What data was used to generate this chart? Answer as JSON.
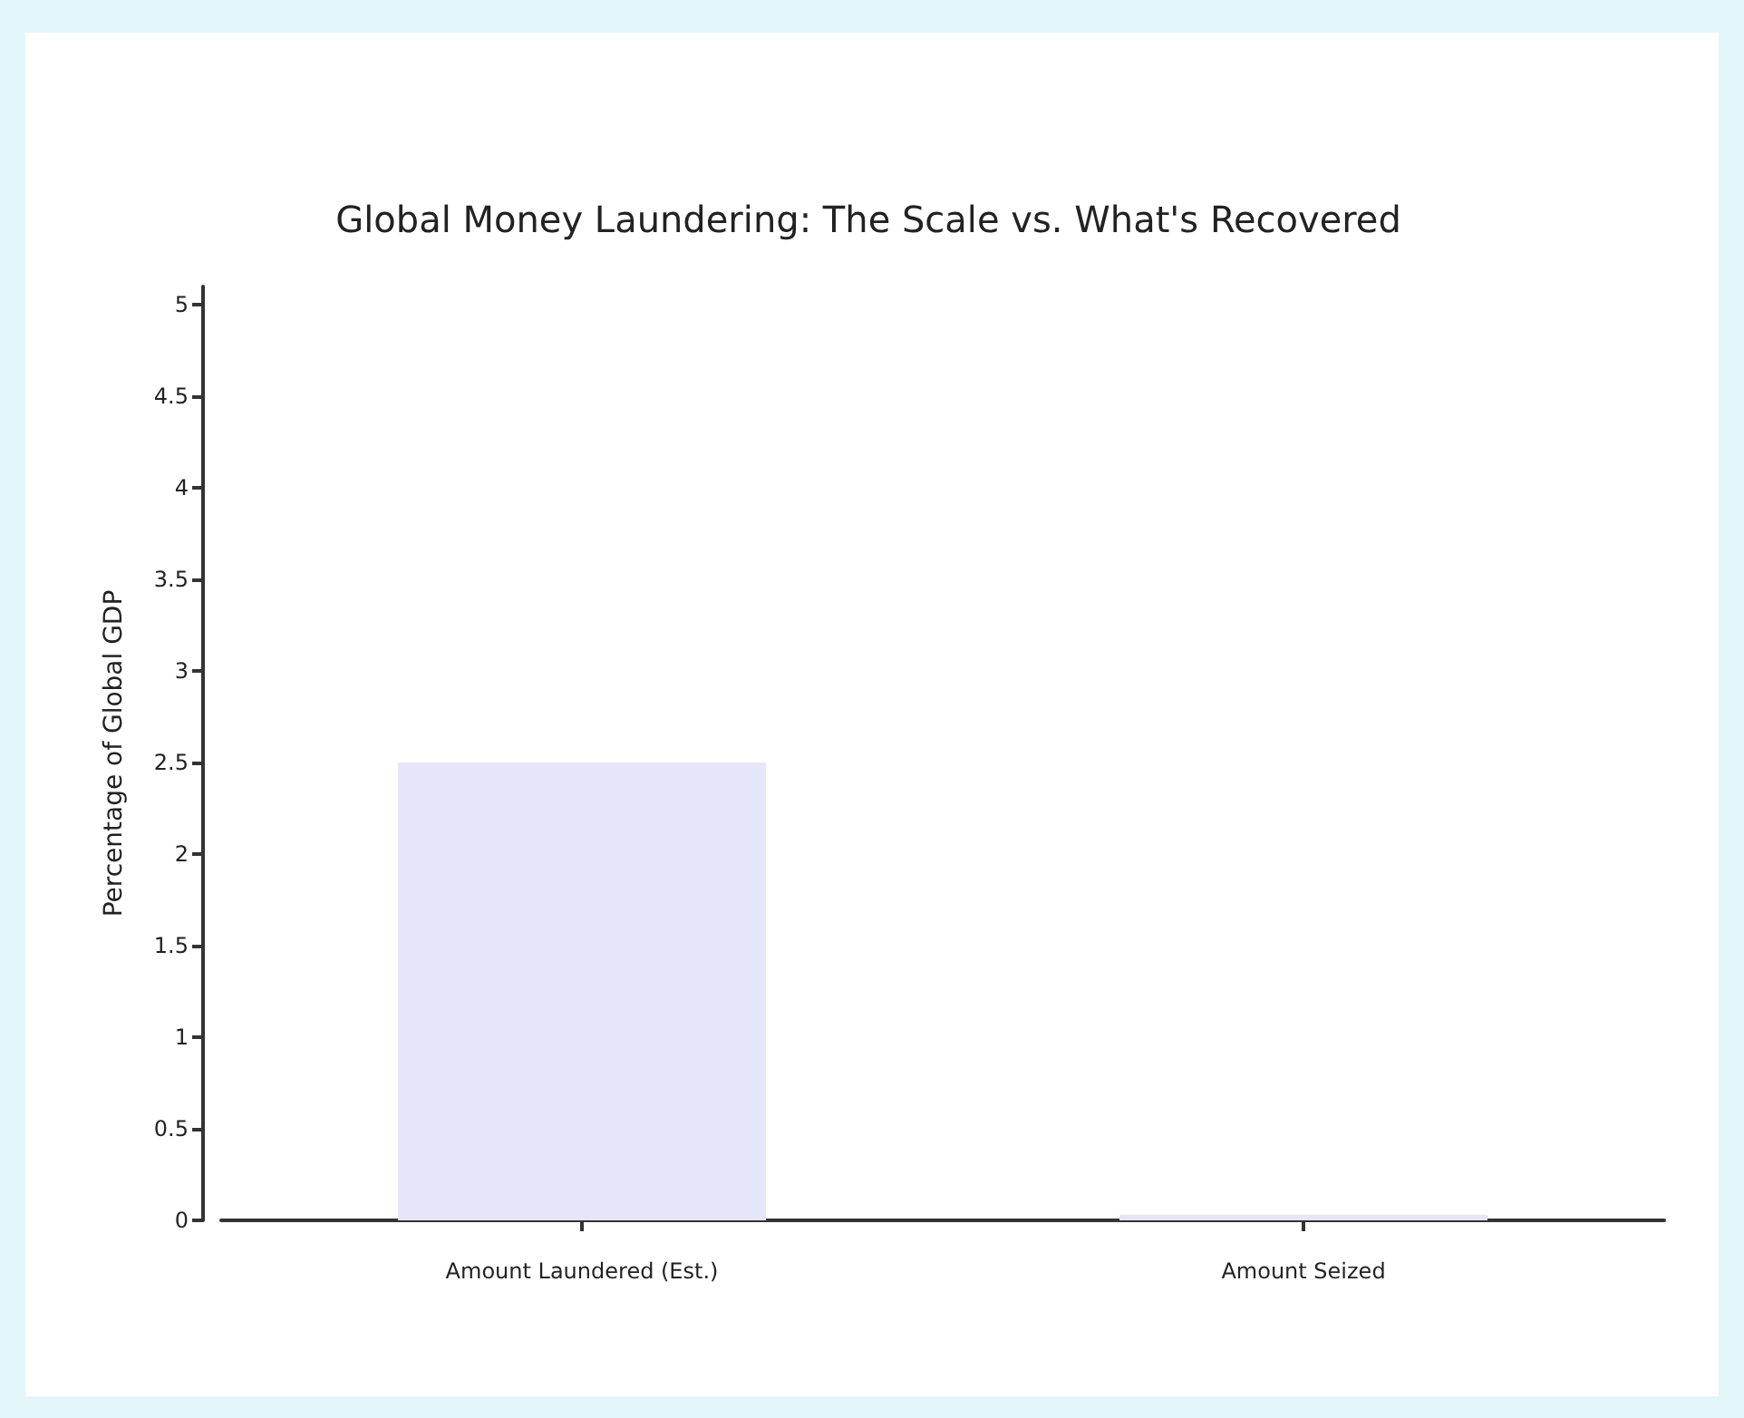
{
  "chart_data": {
    "type": "bar",
    "title": "Global Money Laundering: The Scale vs. What's Recovered",
    "ylabel": "Percentage of Global GDP",
    "categories": [
      "Amount Laundered (Est.)",
      "Amount Seized"
    ],
    "values": [
      2.5,
      0.03
    ],
    "color": "#e6e6fa",
    "ylim": [
      0,
      5.1
    ],
    "yticks": [
      0,
      0.5,
      1,
      1.5,
      2,
      2.5,
      3,
      3.5,
      4,
      4.5,
      5
    ],
    "grid": false
  }
}
